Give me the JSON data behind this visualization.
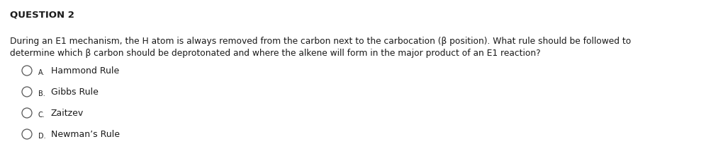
{
  "title": "QUESTION 2",
  "body_line1": "During an E1 mechanism, the H atom is always removed from the carbon next to the carbocation (β position). What rule should be followed to",
  "body_line2": "determine which β carbon should be deprotonated and where the alkene will form in the major product of an E1 reaction?",
  "options": [
    {
      "letter": "A.",
      "text": "Hammond Rule"
    },
    {
      "letter": "B.",
      "text": "Gibbs Rule"
    },
    {
      "letter": "C.",
      "text": "Zaitzev"
    },
    {
      "letter": "D.",
      "text": "Newman’s Rule"
    }
  ],
  "bg_color": "#ffffff",
  "text_color": "#1a1a1a",
  "title_fontsize": 9.5,
  "body_fontsize": 8.8,
  "option_letter_fontsize": 7.0,
  "option_text_fontsize": 9.0,
  "fig_width": 10.04,
  "fig_height": 2.38,
  "dpi": 100
}
